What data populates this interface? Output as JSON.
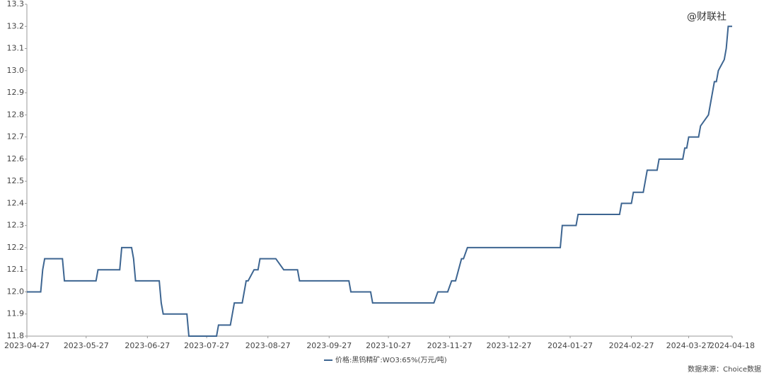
{
  "chart_data": {
    "type": "line",
    "x": [
      "2023-04-27",
      "2023-05-04",
      "2023-05-05",
      "2023-05-06",
      "2023-05-15",
      "2023-05-16",
      "2023-06-01",
      "2023-06-02",
      "2023-06-13",
      "2023-06-14",
      "2023-06-19",
      "2023-06-20",
      "2023-06-21",
      "2023-07-03",
      "2023-07-04",
      "2023-07-05",
      "2023-07-17",
      "2023-07-18",
      "2023-08-01",
      "2023-08-02",
      "2023-08-08",
      "2023-08-10",
      "2023-08-14",
      "2023-08-15",
      "2023-08-16",
      "2023-08-17",
      "2023-08-20",
      "2023-08-22",
      "2023-08-23",
      "2023-08-31",
      "2023-09-04",
      "2023-09-11",
      "2023-09-12",
      "2023-10-07",
      "2023-10-08",
      "2023-10-18",
      "2023-10-19",
      "2023-11-19",
      "2023-11-21",
      "2023-11-26",
      "2023-11-28",
      "2023-11-30",
      "2023-12-03",
      "2023-12-04",
      "2023-12-06",
      "2024-01-22",
      "2024-01-23",
      "2024-01-30",
      "2024-01-31",
      "2024-02-21",
      "2024-02-22",
      "2024-02-27",
      "2024-02-28",
      "2024-03-04",
      "2024-03-06",
      "2024-03-11",
      "2024-03-12",
      "2024-03-24",
      "2024-03-25",
      "2024-03-26",
      "2024-03-27",
      "2024-04-01",
      "2024-04-02",
      "2024-04-06",
      "2024-04-09",
      "2024-04-10",
      "2024-04-11",
      "2024-04-14",
      "2024-04-15",
      "2024-04-16",
      "2024-04-18"
    ],
    "series": [
      {
        "name": "价格:黑钨精矿:WO3:65%(万元/吨)",
        "color": "#3d6591",
        "values": [
          12.0,
          12.0,
          12.1,
          12.15,
          12.15,
          12.05,
          12.05,
          12.1,
          12.1,
          12.2,
          12.2,
          12.15,
          12.05,
          12.05,
          11.95,
          11.9,
          11.9,
          11.8,
          11.8,
          11.85,
          11.85,
          11.95,
          11.95,
          12.0,
          12.05,
          12.05,
          12.1,
          12.1,
          12.15,
          12.15,
          12.1,
          12.1,
          12.05,
          12.05,
          12.0,
          12.0,
          11.95,
          11.95,
          12.0,
          12.0,
          12.05,
          12.05,
          12.15,
          12.15,
          12.2,
          12.2,
          12.3,
          12.3,
          12.35,
          12.35,
          12.4,
          12.4,
          12.45,
          12.45,
          12.55,
          12.55,
          12.6,
          12.6,
          12.65,
          12.65,
          12.7,
          12.7,
          12.75,
          12.8,
          12.95,
          12.95,
          13.0,
          13.05,
          13.1,
          13.2,
          13.2
        ]
      }
    ],
    "xlim": [
      "2023-04-27",
      "2024-04-18"
    ],
    "xticks": [
      "2023-04-27",
      "2023-05-27",
      "2023-06-27",
      "2023-07-27",
      "2023-08-27",
      "2023-09-27",
      "2023-10-27",
      "2023-11-27",
      "2023-12-27",
      "2024-01-27",
      "2024-02-27",
      "2024-03-27",
      "2024-04-18"
    ],
    "ylim": [
      11.8,
      13.3
    ],
    "yticks": [
      11.8,
      11.9,
      {
        "value": 12,
        "label": "12.0"
      },
      12.1,
      12.2,
      12.3,
      12.4,
      12.5,
      12.6,
      12.7,
      12.8,
      12.9,
      {
        "value": 13,
        "label": "13.0"
      },
      13.1,
      13.2,
      13.3
    ],
    "grid": false,
    "annotations": [
      "@财联社",
      "数据来源：Choice数据"
    ]
  }
}
